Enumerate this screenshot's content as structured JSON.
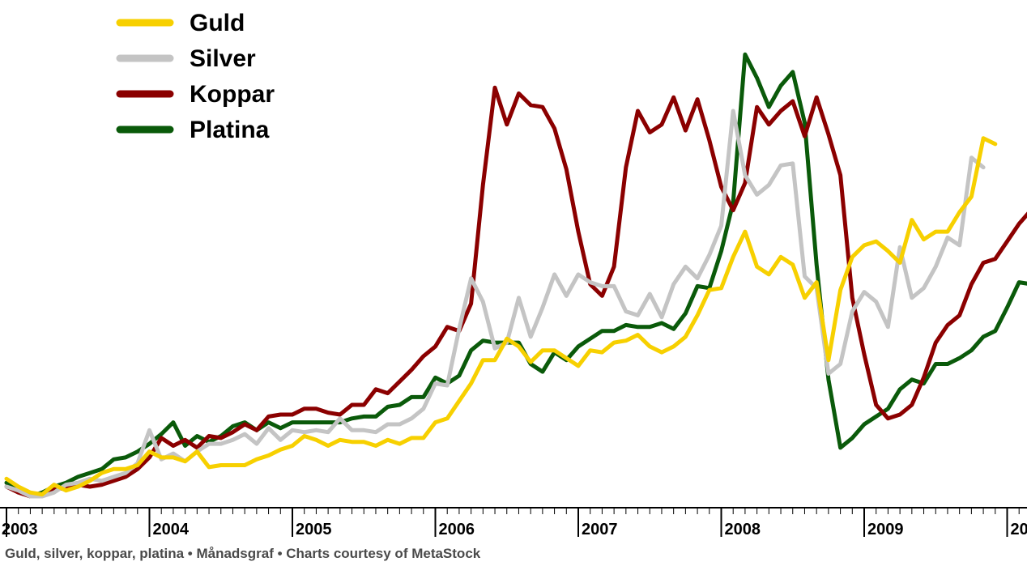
{
  "chart_data": {
    "type": "line",
    "title": "",
    "xlabel": "",
    "ylabel": "",
    "x_start": "2003-01",
    "interval": "monthly",
    "x_tick_labels": [
      "2003",
      "2004",
      "2005",
      "2006",
      "2007",
      "2008",
      "2009",
      "20"
    ],
    "ylim": [
      0,
      260
    ],
    "grid": false,
    "legend_position": "top-left",
    "series": [
      {
        "name": "Guld",
        "color": "#f7d000",
        "values": [
          14,
          10,
          7,
          6,
          11,
          8,
          10,
          13,
          17,
          19,
          19,
          21,
          28,
          25,
          25,
          23,
          28,
          20,
          21,
          21,
          21,
          24,
          26,
          29,
          31,
          36,
          34,
          31,
          34,
          33,
          33,
          31,
          34,
          32,
          35,
          35,
          43,
          45,
          54,
          63,
          75,
          75,
          86,
          82,
          74,
          80,
          80,
          76,
          72,
          80,
          79,
          84,
          85,
          88,
          82,
          79,
          82,
          87,
          98,
          111,
          112,
          128,
          141,
          123,
          119,
          128,
          124,
          107,
          115,
          75,
          111,
          128,
          134,
          136,
          131,
          125,
          147,
          137,
          141,
          141,
          151,
          159,
          189,
          186
        ]
      },
      {
        "name": "Silver",
        "color": "#c4c4c4",
        "values": [
          10,
          8,
          5,
          5,
          7,
          11,
          12,
          14,
          13,
          15,
          17,
          22,
          39,
          24,
          27,
          23,
          28,
          32,
          32,
          34,
          37,
          32,
          40,
          34,
          39,
          38,
          39,
          38,
          45,
          39,
          39,
          38,
          42,
          42,
          45,
          50,
          63,
          62,
          91,
          117,
          105,
          81,
          84,
          107,
          87,
          102,
          119,
          108,
          119,
          115,
          113,
          113,
          100,
          98,
          109,
          97,
          114,
          123,
          117,
          129,
          144,
          203,
          170,
          160,
          165,
          175,
          176,
          118,
          112,
          68,
          73,
          100,
          110,
          105,
          92,
          133,
          107,
          112,
          123,
          138,
          134,
          179,
          174
        ]
      },
      {
        "name": "Koppar",
        "color": "#8b0000",
        "values": [
          10,
          7,
          5,
          6,
          9,
          9,
          11,
          10,
          11,
          13,
          15,
          19,
          25,
          35,
          31,
          34,
          30,
          36,
          35,
          38,
          42,
          39,
          46,
          47,
          47,
          50,
          50,
          48,
          47,
          52,
          52,
          60,
          58,
          64,
          70,
          77,
          82,
          92,
          90,
          104,
          165,
          215,
          196,
          212,
          206,
          205,
          194,
          173,
          141,
          114,
          108,
          123,
          174,
          203,
          192,
          196,
          210,
          193,
          209,
          188,
          164,
          152,
          166,
          205,
          196,
          203,
          208,
          190,
          210,
          191,
          170,
          107,
          78,
          52,
          45,
          47,
          52,
          66,
          84,
          93,
          98,
          114,
          125,
          127,
          136,
          145,
          152
        ]
      },
      {
        "name": "Platina",
        "color": "#0a5a0a",
        "values": [
          12,
          8,
          5,
          7,
          10,
          12,
          15,
          17,
          19,
          24,
          25,
          28,
          32,
          37,
          43,
          31,
          36,
          33,
          36,
          41,
          43,
          39,
          43,
          40,
          43,
          43,
          43,
          43,
          43,
          45,
          46,
          46,
          51,
          52,
          56,
          56,
          66,
          63,
          67,
          80,
          85,
          84,
          84,
          84,
          73,
          69,
          79,
          75,
          82,
          86,
          90,
          90,
          93,
          92,
          92,
          94,
          91,
          99,
          113,
          112,
          131,
          156,
          232,
          220,
          205,
          216,
          223,
          197,
          124,
          65,
          30,
          35,
          42,
          46,
          50,
          60,
          65,
          63,
          73,
          73,
          76,
          80,
          87,
          90,
          102,
          115,
          114
        ]
      }
    ]
  },
  "caption": "Guld, silver, koppar, platina • Månadsgraf • Charts courtesy of MetaStock"
}
